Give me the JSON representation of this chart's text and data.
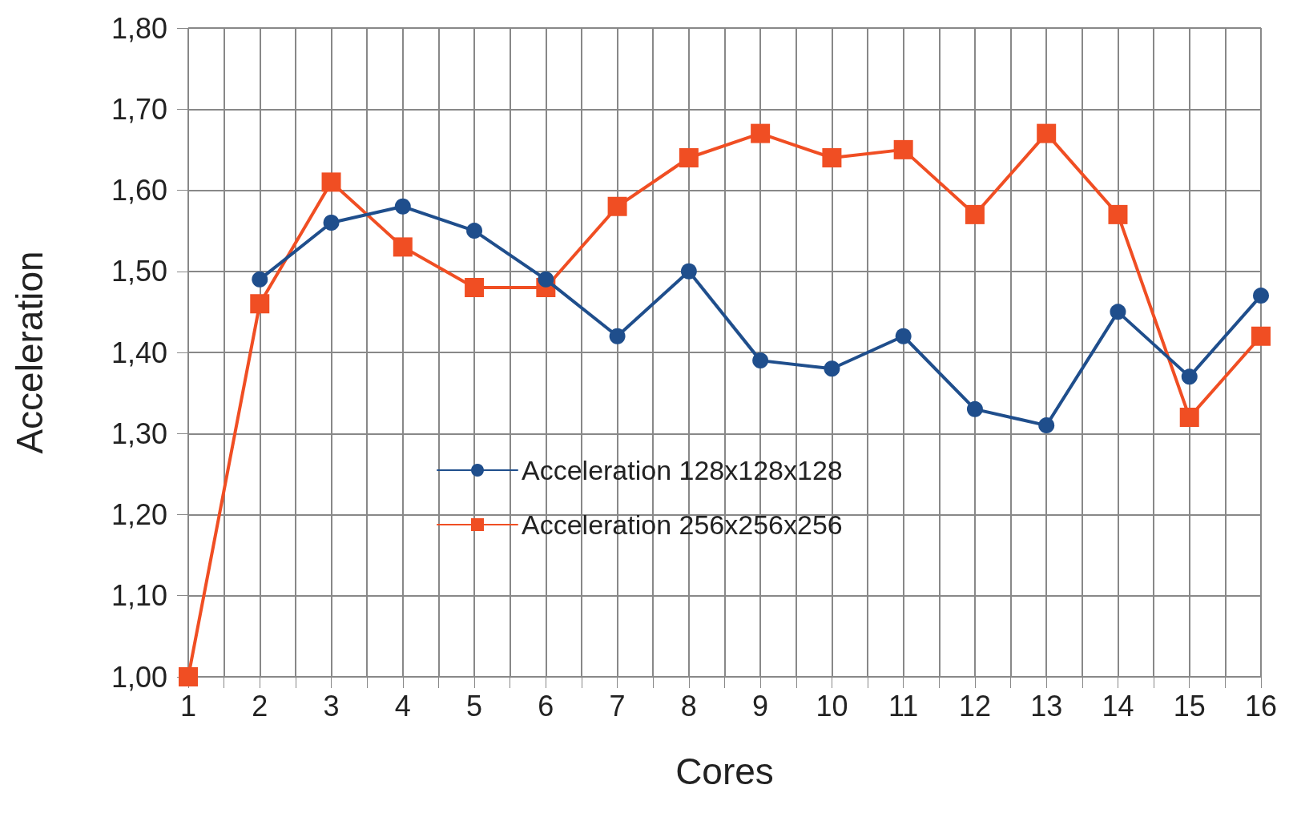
{
  "chart_data": {
    "type": "line",
    "xlabel": "Cores",
    "ylabel": "Acceleration",
    "x": [
      1,
      2,
      3,
      4,
      5,
      6,
      7,
      8,
      9,
      10,
      11,
      12,
      13,
      14,
      15,
      16
    ],
    "series": [
      {
        "name": "Acceleration 128x128x128",
        "color": "#1f4e8c",
        "marker": "circle",
        "values": [
          null,
          1.49,
          1.56,
          1.58,
          1.55,
          1.49,
          1.42,
          1.5,
          1.39,
          1.38,
          1.42,
          1.33,
          1.31,
          1.45,
          1.37,
          1.47
        ]
      },
      {
        "name": "Acceleration 256x256x256",
        "color": "#f04e23",
        "marker": "square",
        "values": [
          1.0,
          1.46,
          1.61,
          1.53,
          1.48,
          1.48,
          1.58,
          1.64,
          1.67,
          1.64,
          1.65,
          1.57,
          1.67,
          1.57,
          1.32,
          1.42
        ]
      }
    ],
    "xlim": [
      1,
      16
    ],
    "xticks": [
      1,
      {
        "value": 1.5,
        "label": null
      },
      2,
      {
        "value": 2.5,
        "label": null
      },
      3,
      {
        "value": 3.5,
        "label": null
      },
      4,
      {
        "value": 4.5,
        "label": null
      },
      5,
      {
        "value": 5.5,
        "label": null
      },
      6,
      {
        "value": 6.5,
        "label": null
      },
      7,
      {
        "value": 7.5,
        "label": null
      },
      8,
      {
        "value": 8.5,
        "label": null
      },
      9,
      {
        "value": 9.5,
        "label": null
      },
      10,
      {
        "value": 10.5,
        "label": null
      },
      11,
      {
        "value": 11.5,
        "label": null
      },
      12,
      {
        "value": 12.5,
        "label": null
      },
      13,
      {
        "value": 13.5,
        "label": null
      },
      14,
      {
        "value": 14.5,
        "label": null
      },
      15,
      {
        "value": 15.5,
        "label": null
      },
      16
    ],
    "ylim": [
      1,
      1.8
    ],
    "yticks": [
      {
        "value": 1,
        "label": "1,00"
      },
      {
        "value": 1.1,
        "label": "1,10"
      },
      {
        "value": 1.2,
        "label": "1,20"
      },
      {
        "value": 1.3,
        "label": "1,30"
      },
      {
        "value": 1.4,
        "label": "1,40"
      },
      {
        "value": 1.5,
        "label": "1,50"
      },
      {
        "value": 1.6,
        "label": "1,60"
      },
      {
        "value": 1.7,
        "label": "1,70"
      },
      {
        "value": 1.8,
        "label": "1,80"
      }
    ],
    "grid": true,
    "legend": "center",
    "line_style": "solid"
  }
}
